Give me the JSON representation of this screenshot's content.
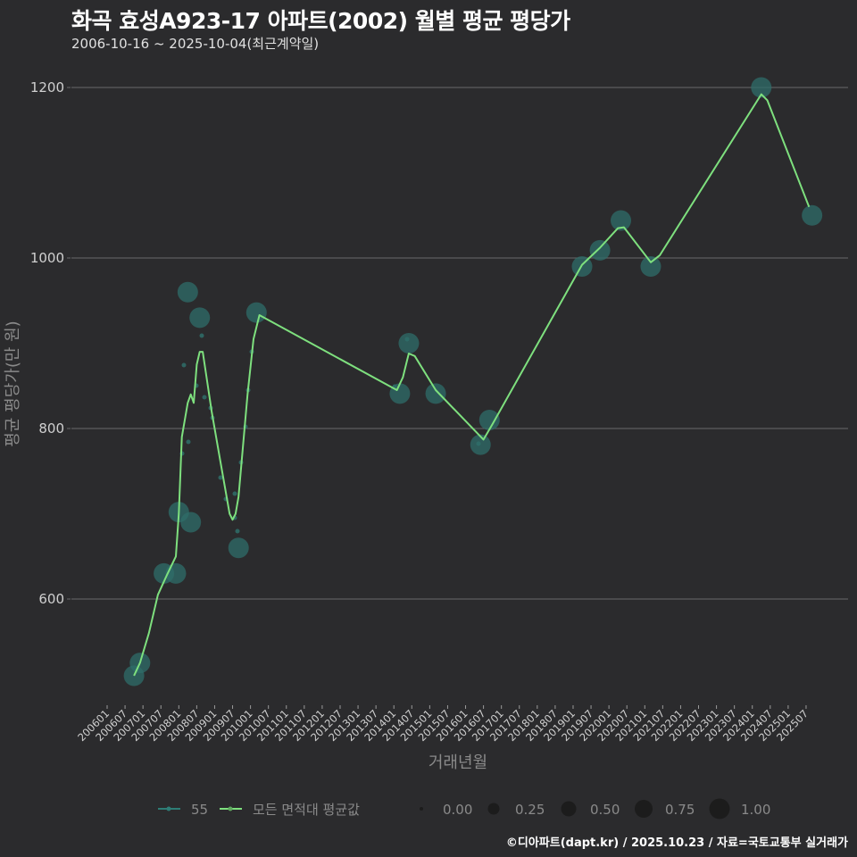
{
  "header": {
    "title": "화곡 효성A923-17 아파트(2002) 월별 평균 평당가",
    "subtitle": "2006-10-16 ~ 2025-10-04(최근계약일)"
  },
  "footer": {
    "credit": "©디아파트(dapt.kr) / 2025.10.23 / 자료=국토교통부 실거래가"
  },
  "colors": {
    "background": "#2b2b2d",
    "grid": "#6a6a6a",
    "series_55": "#2e7d76",
    "series_avg": "#7ee07e",
    "bubble_fill": "#2f6e6a"
  },
  "chart_data": {
    "type": "line",
    "title": "화곡 효성A923-17 아파트(2002) 월별 평균 평당가",
    "subtitle": "2006-10-16 ~ 2025-10-04(최근계약일)",
    "xlabel": "거래년월",
    "ylabel": "평균 평당가(만 원)",
    "ylim": [
      480,
      1230
    ],
    "yticks": [
      600,
      800,
      1000,
      1200
    ],
    "grid": true,
    "xticks": [
      "200601",
      "200607",
      "200701",
      "200707",
      "200801",
      "200807",
      "200901",
      "200907",
      "201001",
      "201007",
      "201101",
      "201107",
      "201201",
      "201207",
      "201301",
      "201307",
      "201401",
      "201407",
      "201501",
      "201507",
      "201601",
      "201607",
      "201701",
      "201707",
      "201801",
      "201807",
      "201901",
      "201907",
      "202001",
      "202007",
      "202101",
      "202107",
      "202201",
      "202207",
      "202301",
      "202307",
      "202401",
      "202407",
      "202501",
      "202507"
    ],
    "legend": {
      "position": "bottom",
      "series": [
        {
          "name": "55",
          "color": "#2e7d76"
        },
        {
          "name": "모든 면적대 평균값",
          "color": "#7ee07e"
        }
      ],
      "size_scale": [
        "0.00",
        "0.25",
        "0.50",
        "0.75",
        "1.00"
      ]
    },
    "series": [
      {
        "name": "55",
        "kind": "bubble",
        "points": [
          {
            "x": "200610",
            "y": 510
          },
          {
            "x": "200612",
            "y": 525
          },
          {
            "x": "200708",
            "y": 630
          },
          {
            "x": "200712",
            "y": 630
          },
          {
            "x": "200801",
            "y": 702
          },
          {
            "x": "200804",
            "y": 960
          },
          {
            "x": "200805",
            "y": 690
          },
          {
            "x": "200808",
            "y": 930
          },
          {
            "x": "200909",
            "y": 660
          },
          {
            "x": "201003",
            "y": 936
          },
          {
            "x": "201403",
            "y": 841
          },
          {
            "x": "201406",
            "y": 900
          },
          {
            "x": "201503",
            "y": 841
          },
          {
            "x": "201606",
            "y": 781
          },
          {
            "x": "201609",
            "y": 810
          },
          {
            "x": "201904",
            "y": 990
          },
          {
            "x": "201910",
            "y": 1009
          },
          {
            "x": "202005",
            "y": 1044
          },
          {
            "x": "202103",
            "y": 990
          },
          {
            "x": "202404",
            "y": 1200
          },
          {
            "x": "202509",
            "y": 1050
          }
        ]
      },
      {
        "name": "모든 면적대 평균값",
        "kind": "line",
        "points": [
          {
            "x": "200610",
            "y": 510
          },
          {
            "x": "200612",
            "y": 525
          },
          {
            "x": "200703",
            "y": 560
          },
          {
            "x": "200706",
            "y": 605
          },
          {
            "x": "200709",
            "y": 628
          },
          {
            "x": "200712",
            "y": 650
          },
          {
            "x": "200801",
            "y": 700
          },
          {
            "x": "200802",
            "y": 790
          },
          {
            "x": "200804",
            "y": 830
          },
          {
            "x": "200805",
            "y": 840
          },
          {
            "x": "200806",
            "y": 830
          },
          {
            "x": "200807",
            "y": 875
          },
          {
            "x": "200808",
            "y": 890
          },
          {
            "x": "200809",
            "y": 890
          },
          {
            "x": "200812",
            "y": 820
          },
          {
            "x": "200903",
            "y": 760
          },
          {
            "x": "200906",
            "y": 700
          },
          {
            "x": "200907",
            "y": 693
          },
          {
            "x": "200908",
            "y": 700
          },
          {
            "x": "200909",
            "y": 720
          },
          {
            "x": "200912",
            "y": 840
          },
          {
            "x": "201002",
            "y": 905
          },
          {
            "x": "201004",
            "y": 933
          },
          {
            "x": "201402",
            "y": 845
          },
          {
            "x": "201404",
            "y": 860
          },
          {
            "x": "201406",
            "y": 888
          },
          {
            "x": "201408",
            "y": 885
          },
          {
            "x": "201503",
            "y": 845
          },
          {
            "x": "201607",
            "y": 787
          },
          {
            "x": "201610",
            "y": 805
          },
          {
            "x": "201904",
            "y": 992
          },
          {
            "x": "201910",
            "y": 1012
          },
          {
            "x": "202004",
            "y": 1035
          },
          {
            "x": "202006",
            "y": 1036
          },
          {
            "x": "202103",
            "y": 995
          },
          {
            "x": "202106",
            "y": 1003
          },
          {
            "x": "202404",
            "y": 1192
          },
          {
            "x": "202406",
            "y": 1185
          },
          {
            "x": "202508",
            "y": 1060
          }
        ]
      }
    ]
  }
}
